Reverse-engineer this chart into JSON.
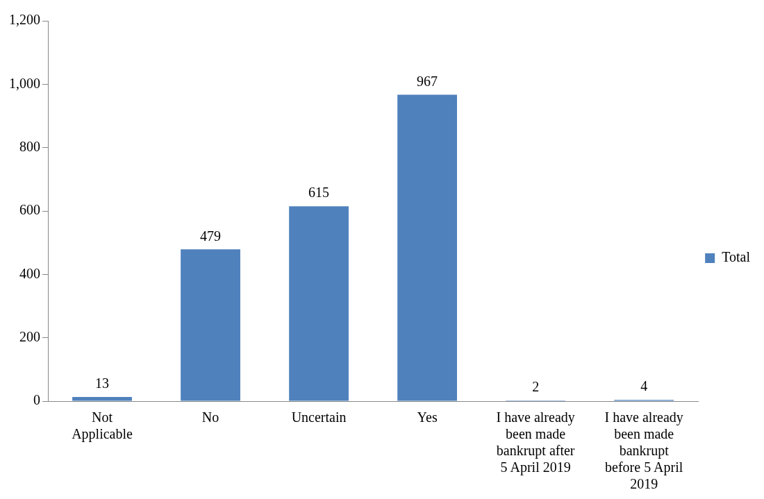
{
  "chart_data": {
    "type": "bar",
    "categories": [
      "Not Applicable",
      "No",
      "Uncertain",
      "Yes",
      "I have already been made bankrupt after 5 April 2019",
      "I have already been made bankrupt before 5 April 2019"
    ],
    "series": [
      {
        "name": "Total",
        "color": "#4f81bd",
        "values": [
          13,
          479,
          615,
          967,
          2,
          4
        ]
      }
    ],
    "ylim": [
      0,
      1200
    ],
    "yticks": [
      {
        "value": 0,
        "label": "0"
      },
      {
        "value": 200,
        "label": "200"
      },
      {
        "value": 400,
        "label": "400"
      },
      {
        "value": 600,
        "label": "600"
      },
      {
        "value": 800,
        "label": "800"
      },
      {
        "value": 1000,
        "label": "1,000"
      },
      {
        "value": 1200,
        "label": "1,200"
      }
    ],
    "grid": false,
    "legend": "right",
    "data_labels": true
  }
}
